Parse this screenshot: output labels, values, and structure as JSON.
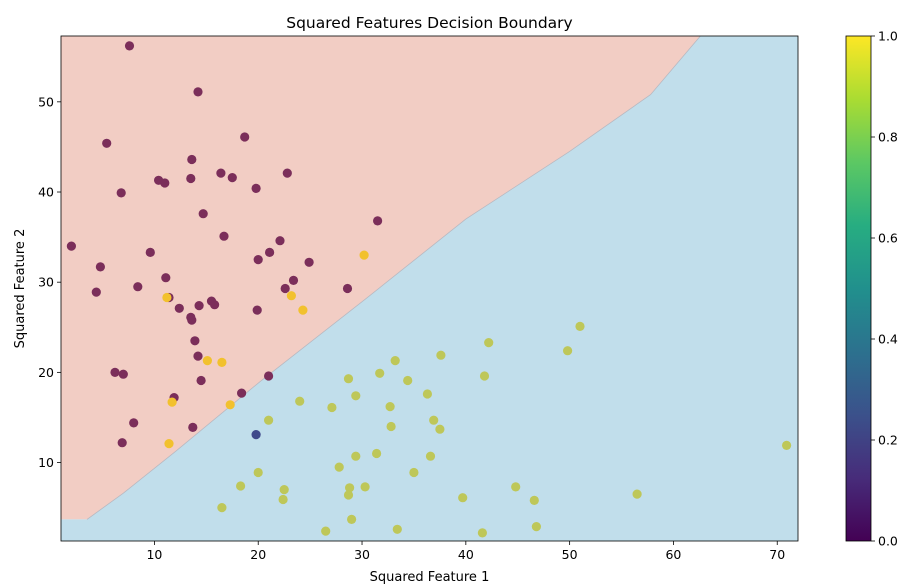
{
  "chart_data": {
    "type": "scatter",
    "title": "Squared Features Decision Boundary",
    "xlabel": "Squared Feature 1",
    "ylabel": "Squared Feature 2",
    "xlim": [
      1.0,
      72.0
    ],
    "ylim": [
      1.3,
      57.3
    ],
    "xticks": [
      10,
      20,
      30,
      40,
      50,
      60,
      70
    ],
    "yticks": [
      10,
      20,
      30,
      40,
      50
    ],
    "grid": false,
    "decision_boundary": {
      "region_above_color": "#f2cdc4",
      "region_below_color": "#c1deeb",
      "points": [
        [
          3.5,
          3.7
        ],
        [
          7.0,
          6.6
        ],
        [
          12.0,
          11.2
        ],
        [
          20.2,
          19.0
        ],
        [
          30.3,
          28.1
        ],
        [
          40.0,
          37.0
        ],
        [
          50.0,
          44.5
        ],
        [
          57.8,
          50.8
        ],
        [
          62.6,
          57.3
        ]
      ]
    },
    "colorbar": {
      "colormap": "viridis",
      "min": 0.0,
      "max": 1.0,
      "ticks": [
        "0.0",
        "0.2",
        "0.4",
        "0.6",
        "0.8",
        "1.0"
      ]
    },
    "series": [
      {
        "color": "#7b2e5a",
        "points": [
          [
            7.6,
            56.2
          ],
          [
            14.2,
            51.1
          ],
          [
            5.4,
            45.4
          ],
          [
            18.7,
            46.1
          ],
          [
            13.6,
            43.6
          ],
          [
            16.4,
            42.1
          ],
          [
            17.5,
            41.6
          ],
          [
            22.8,
            42.1
          ],
          [
            10.4,
            41.3
          ],
          [
            11.0,
            41.0
          ],
          [
            13.5,
            41.5
          ],
          [
            6.8,
            39.9
          ],
          [
            19.8,
            40.4
          ],
          [
            14.7,
            37.6
          ],
          [
            31.5,
            36.8
          ],
          [
            2.0,
            34.0
          ],
          [
            16.7,
            35.1
          ],
          [
            22.1,
            34.6
          ],
          [
            9.6,
            33.3
          ],
          [
            21.1,
            33.3
          ],
          [
            4.8,
            31.7
          ],
          [
            20.0,
            32.5
          ],
          [
            24.9,
            32.2
          ],
          [
            11.1,
            30.5
          ],
          [
            23.4,
            30.2
          ],
          [
            4.4,
            28.9
          ],
          [
            8.4,
            29.5
          ],
          [
            22.6,
            29.3
          ],
          [
            28.6,
            29.3
          ],
          [
            11.4,
            28.3
          ],
          [
            15.5,
            27.9
          ],
          [
            14.3,
            27.4
          ],
          [
            15.8,
            27.5
          ],
          [
            12.4,
            27.1
          ],
          [
            19.9,
            26.9
          ],
          [
            13.5,
            26.1
          ],
          [
            13.6,
            25.8
          ],
          [
            13.9,
            23.5
          ],
          [
            14.2,
            21.8
          ],
          [
            6.2,
            20.0
          ],
          [
            7.0,
            19.8
          ],
          [
            21.0,
            19.6
          ],
          [
            14.5,
            19.1
          ],
          [
            18.4,
            17.7
          ],
          [
            11.9,
            17.2
          ],
          [
            8.0,
            14.4
          ],
          [
            13.7,
            13.9
          ],
          [
            6.9,
            12.2
          ]
        ]
      },
      {
        "color": "#f2c12e",
        "points": [
          [
            30.2,
            33.0
          ],
          [
            11.2,
            28.3
          ],
          [
            23.2,
            28.5
          ],
          [
            24.3,
            26.9
          ],
          [
            15.1,
            21.3
          ],
          [
            16.5,
            21.1
          ],
          [
            11.7,
            16.7
          ],
          [
            17.3,
            16.4
          ],
          [
            11.4,
            12.1
          ]
        ]
      },
      {
        "color": "#bec759",
        "points": [
          [
            51.0,
            25.1
          ],
          [
            49.8,
            22.4
          ],
          [
            42.2,
            23.3
          ],
          [
            37.6,
            21.9
          ],
          [
            33.2,
            21.3
          ],
          [
            28.7,
            19.3
          ],
          [
            31.7,
            19.9
          ],
          [
            34.4,
            19.1
          ],
          [
            41.8,
            19.6
          ],
          [
            36.3,
            17.6
          ],
          [
            29.4,
            17.4
          ],
          [
            24.0,
            16.8
          ],
          [
            27.1,
            16.1
          ],
          [
            32.7,
            16.2
          ],
          [
            21.0,
            14.7
          ],
          [
            36.9,
            14.7
          ],
          [
            37.5,
            13.7
          ],
          [
            32.8,
            14.0
          ],
          [
            31.4,
            11.0
          ],
          [
            36.6,
            10.7
          ],
          [
            29.4,
            10.7
          ],
          [
            27.8,
            9.5
          ],
          [
            20.0,
            8.9
          ],
          [
            35.0,
            8.9
          ],
          [
            70.9,
            11.9
          ],
          [
            18.3,
            7.4
          ],
          [
            22.5,
            7.0
          ],
          [
            28.8,
            7.2
          ],
          [
            30.3,
            7.3
          ],
          [
            44.8,
            7.3
          ],
          [
            28.7,
            6.4
          ],
          [
            22.4,
            5.9
          ],
          [
            39.7,
            6.1
          ],
          [
            46.6,
            5.8
          ],
          [
            56.5,
            6.5
          ],
          [
            16.5,
            5.0
          ],
          [
            29.0,
            3.7
          ],
          [
            46.8,
            2.9
          ],
          [
            26.5,
            2.4
          ],
          [
            33.4,
            2.6
          ],
          [
            41.6,
            2.2
          ]
        ]
      },
      {
        "color": "#404a8b",
        "points": [
          [
            19.8,
            13.1
          ]
        ]
      }
    ]
  }
}
